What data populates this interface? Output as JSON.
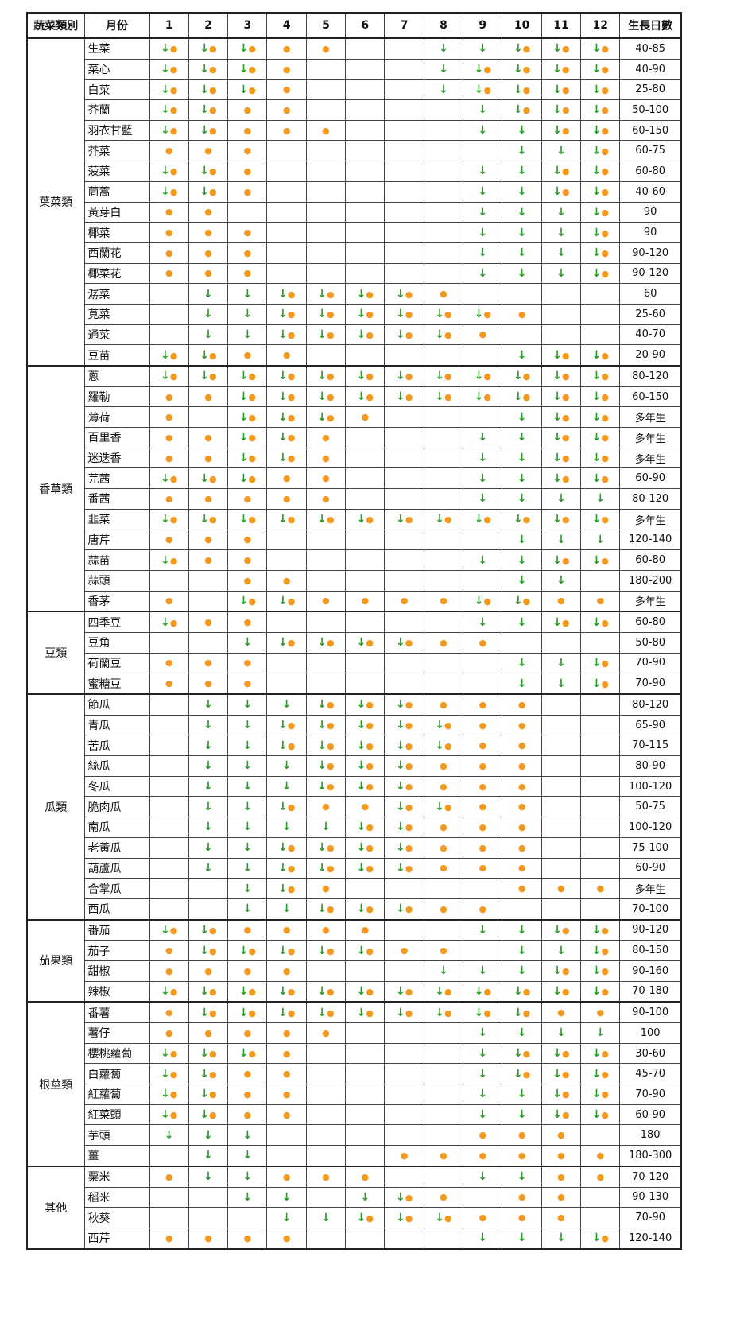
{
  "header": [
    "蔬菜類別",
    "月份",
    "1",
    "2",
    "3",
    "4",
    "5",
    "6",
    "7",
    "8",
    "9",
    "10",
    "11",
    "12",
    "生長日數"
  ],
  "groups": [
    {
      "category": "葉菜類",
      "rows": [
        {
          "name": "生菜",
          "months": [
            "↓●",
            "↓●",
            "↓●",
            "●",
            "●",
            null,
            null,
            "↓",
            "↓",
            "↓●",
            "↓●",
            "↓●"
          ],
          "days": "40-85"
        },
        {
          "name": "菜心",
          "months": [
            "↓●",
            "↓●",
            "↓●",
            "●",
            null,
            null,
            null,
            "↓",
            "↓●",
            "↓●",
            "↓●",
            "↓●"
          ],
          "days": "40-90"
        },
        {
          "name": "白菜",
          "months": [
            "↓●",
            "↓●",
            "↓●",
            "●",
            null,
            null,
            null,
            "↓",
            "↓●",
            "↓●",
            "↓●",
            "↓●"
          ],
          "days": "25-80"
        },
        {
          "name": "芥蘭",
          "months": [
            "↓●",
            "↓●",
            "●",
            "●",
            null,
            null,
            null,
            null,
            "↓",
            "↓●",
            "↓●",
            "↓●"
          ],
          "days": "50-100"
        },
        {
          "name": "羽衣甘藍",
          "months": [
            "↓●",
            "↓●",
            "●",
            "●",
            "●",
            null,
            null,
            null,
            "↓",
            "↓",
            "↓●",
            "↓●"
          ],
          "days": "60-150"
        },
        {
          "name": "芥菜",
          "months": [
            "●",
            "●",
            "●",
            null,
            null,
            null,
            null,
            null,
            null,
            "↓",
            "↓",
            "↓●"
          ],
          "days": "60-75"
        },
        {
          "name": "菠菜",
          "months": [
            "↓●",
            "↓●",
            "●",
            null,
            null,
            null,
            null,
            null,
            "↓",
            "↓",
            "↓●",
            "↓●"
          ],
          "days": "60-80"
        },
        {
          "name": "茼蒿",
          "months": [
            "↓●",
            "↓●",
            "●",
            null,
            null,
            null,
            null,
            null,
            "↓",
            "↓",
            "↓●",
            "↓●"
          ],
          "days": "40-60"
        },
        {
          "name": "黃芽白",
          "months": [
            "●",
            "●",
            null,
            null,
            null,
            null,
            null,
            null,
            "↓",
            "↓",
            "↓",
            "↓●"
          ],
          "days": "90"
        },
        {
          "name": "椰菜",
          "months": [
            "●",
            "●",
            "●",
            null,
            null,
            null,
            null,
            null,
            "↓",
            "↓",
            "↓",
            "↓●"
          ],
          "days": "90"
        },
        {
          "name": "西蘭花",
          "months": [
            "●",
            "●",
            "●",
            null,
            null,
            null,
            null,
            null,
            "↓",
            "↓",
            "↓",
            "↓●"
          ],
          "days": "90-120"
        },
        {
          "name": "椰菜花",
          "months": [
            "●",
            "●",
            "●",
            null,
            null,
            null,
            null,
            null,
            "↓",
            "↓",
            "↓",
            "↓●"
          ],
          "days": "90-120"
        },
        {
          "name": "潺菜",
          "months": [
            null,
            "↓",
            "↓",
            "↓●",
            "↓●",
            "↓●",
            "↓●",
            "●",
            null,
            null,
            null,
            null
          ],
          "days": "60"
        },
        {
          "name": "莧菜",
          "months": [
            null,
            "↓",
            "↓",
            "↓●",
            "↓●",
            "↓●",
            "↓●",
            "↓●",
            "↓●",
            "●",
            null,
            null
          ],
          "days": "25-60"
        },
        {
          "name": "通菜",
          "months": [
            null,
            "↓",
            "↓",
            "↓●",
            "↓●",
            "↓●",
            "↓●",
            "↓●",
            "●",
            null,
            null,
            null
          ],
          "days": "40-70"
        },
        {
          "name": "豆苗",
          "months": [
            "↓●",
            "↓●",
            "●",
            "●",
            null,
            null,
            null,
            null,
            null,
            "↓",
            "↓●",
            "↓●"
          ],
          "days": "20-90"
        }
      ]
    },
    {
      "category": "香草類",
      "rows": [
        {
          "name": "蔥",
          "months": [
            "↓●",
            "↓●",
            "↓●",
            "↓●",
            "↓●",
            "↓●",
            "↓●",
            "↓●",
            "↓●",
            "↓●",
            "↓●",
            "↓●"
          ],
          "days": "80-120"
        },
        {
          "name": "羅勒",
          "months": [
            "●",
            "●",
            "↓●",
            "↓●",
            "↓●",
            "↓●",
            "↓●",
            "↓●",
            "↓●",
            "↓●",
            "↓●",
            "↓●"
          ],
          "days": "60-150"
        },
        {
          "name": "薄荷",
          "months": [
            "●",
            null,
            "↓●",
            "↓●",
            "↓●",
            "●",
            null,
            null,
            null,
            "↓",
            "↓●",
            "↓●"
          ],
          "days": "多年生"
        },
        {
          "name": "百里香",
          "months": [
            "●",
            "●",
            "↓●",
            "↓●",
            "●",
            null,
            null,
            null,
            "↓",
            "↓",
            "↓●",
            "↓●"
          ],
          "days": "多年生"
        },
        {
          "name": "迷迭香",
          "months": [
            "●",
            "●",
            "↓●",
            "↓●",
            "●",
            null,
            null,
            null,
            "↓",
            "↓",
            "↓●",
            "↓●"
          ],
          "days": "多年生"
        },
        {
          "name": "芫茜",
          "months": [
            "↓●",
            "↓●",
            "↓●",
            "●",
            "●",
            null,
            null,
            null,
            "↓",
            "↓",
            "↓●",
            "↓●"
          ],
          "days": "60-90"
        },
        {
          "name": "番茜",
          "months": [
            "●",
            "●",
            "●",
            "●",
            "●",
            null,
            null,
            null,
            "↓",
            "↓",
            "↓",
            "↓"
          ],
          "days": "80-120"
        },
        {
          "name": "韭菜",
          "months": [
            "↓●",
            "↓●",
            "↓●",
            "↓●",
            "↓●",
            "↓●",
            "↓●",
            "↓●",
            "↓●",
            "↓●",
            "↓●",
            "↓●"
          ],
          "days": "多年生"
        },
        {
          "name": "唐芹",
          "months": [
            "●",
            "●",
            "●",
            null,
            null,
            null,
            null,
            null,
            null,
            "↓",
            "↓",
            "↓"
          ],
          "days": "120-140"
        },
        {
          "name": "蒜苗",
          "months": [
            "↓●",
            "●",
            "●",
            null,
            null,
            null,
            null,
            null,
            "↓",
            "↓",
            "↓●",
            "↓●"
          ],
          "days": "60-80"
        },
        {
          "name": "蒜頭",
          "months": [
            null,
            null,
            "●",
            "●",
            null,
            null,
            null,
            null,
            null,
            "↓",
            "↓",
            null
          ],
          "days": "180-200"
        },
        {
          "name": "香茅",
          "months": [
            "●",
            null,
            "↓●",
            "↓●",
            "●",
            "●",
            "●",
            "●",
            "↓●",
            "↓●",
            "●",
            "●"
          ],
          "days": "多年生"
        }
      ]
    },
    {
      "category": "豆類",
      "rows": [
        {
          "name": "四季豆",
          "months": [
            "↓●",
            "●",
            "●",
            null,
            null,
            null,
            null,
            null,
            "↓",
            "↓",
            "↓●",
            "↓●"
          ],
          "days": "60-80"
        },
        {
          "name": "豆角",
          "months": [
            null,
            null,
            "↓",
            "↓●",
            "↓●",
            "↓●",
            "↓●",
            "●",
            "●",
            null,
            null,
            null
          ],
          "days": "50-80"
        },
        {
          "name": "荷蘭豆",
          "months": [
            "●",
            "●",
            "●",
            null,
            null,
            null,
            null,
            null,
            null,
            "↓",
            "↓",
            "↓●"
          ],
          "days": "70-90"
        },
        {
          "name": "蜜糖豆",
          "months": [
            "●",
            "●",
            "●",
            null,
            null,
            null,
            null,
            null,
            null,
            "↓",
            "↓",
            "↓●"
          ],
          "days": "70-90"
        }
      ]
    },
    {
      "category": "瓜類",
      "rows": [
        {
          "name": "節瓜",
          "months": [
            null,
            "↓",
            "↓",
            "↓",
            "↓●",
            "↓●",
            "↓●",
            "●",
            "●",
            "●",
            null,
            null
          ],
          "days": "80-120"
        },
        {
          "name": "青瓜",
          "months": [
            null,
            "↓",
            "↓",
            "↓●",
            "↓●",
            "↓●",
            "↓●",
            "↓●",
            "●",
            "●",
            null,
            null
          ],
          "days": "65-90"
        },
        {
          "name": "苦瓜",
          "months": [
            null,
            "↓",
            "↓",
            "↓●",
            "↓●",
            "↓●",
            "↓●",
            "↓●",
            "●",
            "●",
            null,
            null
          ],
          "days": "70-115"
        },
        {
          "name": "絲瓜",
          "months": [
            null,
            "↓",
            "↓",
            "↓",
            "↓●",
            "↓●",
            "↓●",
            "●",
            "●",
            "●",
            null,
            null
          ],
          "days": "80-90"
        },
        {
          "name": "冬瓜",
          "months": [
            null,
            "↓",
            "↓",
            "↓",
            "↓●",
            "↓●",
            "↓●",
            "●",
            "●",
            "●",
            null,
            null
          ],
          "days": "100-120"
        },
        {
          "name": "脆肉瓜",
          "months": [
            null,
            "↓",
            "↓",
            "↓●",
            "●",
            "●",
            "↓●",
            "↓●",
            "●",
            "●",
            null,
            null
          ],
          "days": "50-75"
        },
        {
          "name": "南瓜",
          "months": [
            null,
            "↓",
            "↓",
            "↓",
            "↓",
            "↓●",
            "↓●",
            "●",
            "●",
            "●",
            null,
            null
          ],
          "days": "100-120"
        },
        {
          "name": "老黃瓜",
          "months": [
            null,
            "↓",
            "↓",
            "↓●",
            "↓●",
            "↓●",
            "↓●",
            "●",
            "●",
            "●",
            null,
            null
          ],
          "days": "75-100"
        },
        {
          "name": "葫蘆瓜",
          "months": [
            null,
            "↓",
            "↓",
            "↓●",
            "↓●",
            "↓●",
            "↓●",
            "●",
            "●",
            "●",
            null,
            null
          ],
          "days": "60-90"
        },
        {
          "name": "合掌瓜",
          "months": [
            null,
            null,
            "↓",
            "↓●",
            "●",
            null,
            null,
            null,
            null,
            "●",
            "●",
            "●"
          ],
          "days": "多年生"
        },
        {
          "name": "西瓜",
          "months": [
            null,
            null,
            "↓",
            "↓",
            "↓●",
            "↓●",
            "↓●",
            "●",
            "●",
            null,
            null,
            null
          ],
          "days": "70-100"
        }
      ]
    },
    {
      "category": "茄果類",
      "rows": [
        {
          "name": "番茄",
          "months": [
            "↓●",
            "↓●",
            "●",
            "●",
            "●",
            "●",
            null,
            null,
            "↓",
            "↓",
            "↓●",
            "↓●"
          ],
          "days": "90-120"
        },
        {
          "name": "茄子",
          "months": [
            "●",
            "↓●",
            "↓●",
            "↓●",
            "↓●",
            "↓●",
            "●",
            "●",
            null,
            "↓",
            "↓",
            "↓●"
          ],
          "days": "80-150"
        },
        {
          "name": "甜椒",
          "months": [
            "●",
            "●",
            "●",
            "●",
            null,
            null,
            null,
            "↓",
            "↓",
            "↓",
            "↓●",
            "↓●"
          ],
          "days": "90-160"
        },
        {
          "name": "辣椒",
          "months": [
            "↓●",
            "↓●",
            "↓●",
            "↓●",
            "↓●",
            "↓●",
            "↓●",
            "↓●",
            "↓●",
            "↓●",
            "↓●",
            "↓●"
          ],
          "days": "70-180"
        }
      ]
    },
    {
      "category": "根莖類",
      "rows": [
        {
          "name": "番薯",
          "months": [
            "●",
            "↓●",
            "↓●",
            "↓●",
            "↓●",
            "↓●",
            "↓●",
            "↓●",
            "↓●",
            "↓●",
            "●",
            "●"
          ],
          "days": "90-100"
        },
        {
          "name": "薯仔",
          "months": [
            "●",
            "●",
            "●",
            "●",
            "●",
            null,
            null,
            null,
            "↓",
            "↓",
            "↓",
            "↓"
          ],
          "days": "100"
        },
        {
          "name": "櫻桃蘿蔔",
          "months": [
            "↓●",
            "↓●",
            "↓●",
            "●",
            null,
            null,
            null,
            null,
            "↓",
            "↓●",
            "↓●",
            "↓●"
          ],
          "days": "30-60"
        },
        {
          "name": "白蘿蔔",
          "months": [
            "↓●",
            "↓●",
            "●",
            "●",
            null,
            null,
            null,
            null,
            "↓",
            "↓●",
            "↓●",
            "↓●"
          ],
          "days": "45-70"
        },
        {
          "name": "紅蘿蔔",
          "months": [
            "↓●",
            "↓●",
            "●",
            "●",
            null,
            null,
            null,
            null,
            "↓",
            "↓",
            "↓●",
            "↓●"
          ],
          "days": "70-90"
        },
        {
          "name": "紅菜頭",
          "months": [
            "↓●",
            "↓●",
            "●",
            "●",
            null,
            null,
            null,
            null,
            "↓",
            "↓",
            "↓●",
            "↓●"
          ],
          "days": "60-90"
        },
        {
          "name": "芋頭",
          "months": [
            "↓",
            "↓",
            "↓",
            null,
            null,
            null,
            null,
            null,
            "●",
            "●",
            "●",
            null
          ],
          "days": "180"
        },
        {
          "name": "薑",
          "months": [
            null,
            "↓",
            "↓",
            null,
            null,
            null,
            "●",
            "●",
            "●",
            "●",
            "●",
            "●"
          ],
          "days": "180-300"
        }
      ]
    },
    {
      "category": "其他",
      "rows": [
        {
          "name": "粟米",
          "months": [
            "●",
            "↓",
            "↓",
            "●",
            "●",
            "●",
            null,
            null,
            "↓",
            "↓",
            "●",
            "●"
          ],
          "days": "70-120"
        },
        {
          "name": "稻米",
          "months": [
            null,
            null,
            "↓",
            "↓",
            null,
            "↓",
            "↓●",
            "●",
            null,
            "●",
            "●",
            null
          ],
          "days": "90-130"
        },
        {
          "name": "秋葵",
          "months": [
            null,
            null,
            null,
            "↓",
            "↓",
            "↓●",
            "↓●",
            "↓●",
            "●",
            "●",
            "●",
            null
          ],
          "days": "70-90"
        },
        {
          "name": "西芹",
          "months": [
            "●",
            "●",
            "●",
            "●",
            null,
            null,
            null,
            null,
            "↓",
            "↓",
            "↓",
            "↓●"
          ],
          "days": "120-140"
        }
      ]
    }
  ]
}
